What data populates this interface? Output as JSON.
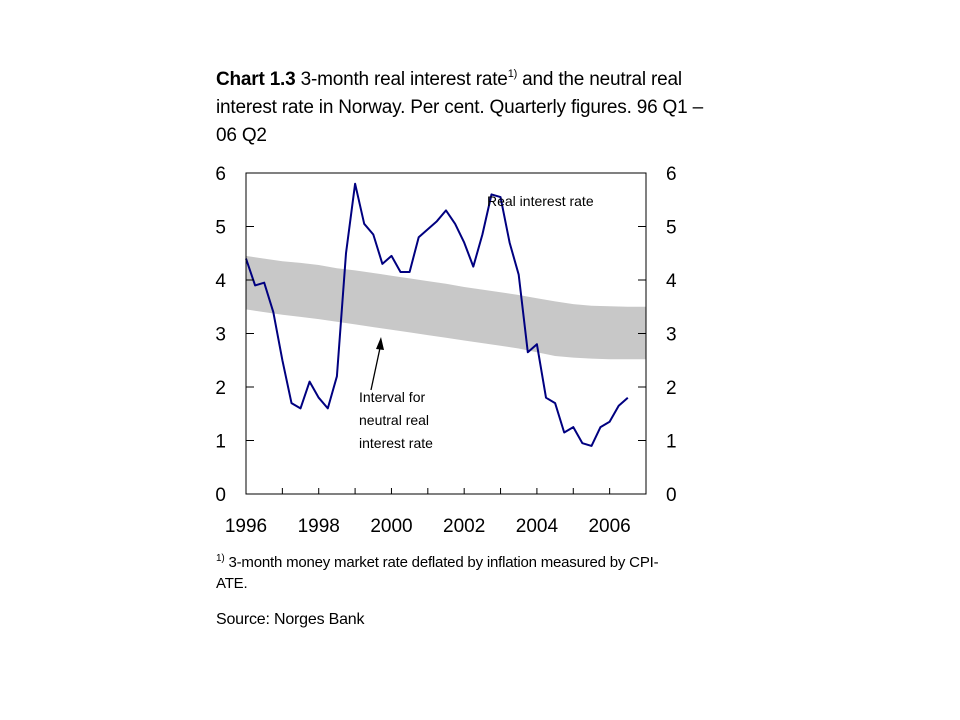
{
  "title": {
    "prefix": "Chart 1.3",
    "part1": "3-month real interest rate",
    "superscript": "1)",
    "part2": "and the neutral real interest rate in Norway. Per cent. Quarterly figures. 96 Q1 – 06 Q2"
  },
  "footnote": {
    "marker": "1)",
    "text": "3-month money market rate deflated by inflation measured by CPI-ATE."
  },
  "source": "Source: Norges Bank",
  "chart_data": {
    "type": "line",
    "ylim": [
      0,
      6
    ],
    "xlim": [
      1996,
      2007
    ],
    "y_ticks": [
      "0",
      "1",
      "2",
      "3",
      "4",
      "5",
      "6"
    ],
    "x_ticks": [
      "1996",
      "1998",
      "2000",
      "2002",
      "2004",
      "2006"
    ],
    "grid": false,
    "annotations": {
      "series_label": "Real interest rate",
      "band_label": "Interval for neutral real interest rate"
    },
    "colors": {
      "line": "#000080",
      "band": "#c8c8c8"
    },
    "band": {
      "x": [
        1996.0,
        1996.5,
        1997.0,
        1997.5,
        1998.0,
        1998.5,
        1999.0,
        1999.5,
        2000.0,
        2000.5,
        2001.0,
        2001.5,
        2002.0,
        2002.5,
        2003.0,
        2003.5,
        2004.0,
        2004.5,
        2005.0,
        2005.5,
        2006.0,
        2006.5,
        2007.0
      ],
      "upper": [
        4.45,
        4.4,
        4.35,
        4.32,
        4.28,
        4.22,
        4.18,
        4.13,
        4.08,
        4.03,
        3.98,
        3.93,
        3.87,
        3.82,
        3.77,
        3.72,
        3.66,
        3.6,
        3.55,
        3.52,
        3.51,
        3.5,
        3.5
      ],
      "lower": [
        3.45,
        3.4,
        3.35,
        3.31,
        3.27,
        3.22,
        3.17,
        3.12,
        3.07,
        3.02,
        2.97,
        2.92,
        2.87,
        2.82,
        2.77,
        2.72,
        2.65,
        2.58,
        2.55,
        2.53,
        2.52,
        2.52,
        2.52
      ]
    },
    "series": [
      {
        "name": "Real interest rate",
        "x": [
          1996.0,
          1996.25,
          1996.5,
          1996.75,
          1997.0,
          1997.25,
          1997.5,
          1997.75,
          1998.0,
          1998.25,
          1998.5,
          1998.75,
          1999.0,
          1999.25,
          1999.5,
          1999.75,
          2000.0,
          2000.25,
          2000.5,
          2000.75,
          2001.0,
          2001.25,
          2001.5,
          2001.75,
          2002.0,
          2002.25,
          2002.5,
          2002.75,
          2003.0,
          2003.25,
          2003.5,
          2003.75,
          2004.0,
          2004.25,
          2004.5,
          2004.75,
          2005.0,
          2005.25,
          2005.5,
          2005.75,
          2006.0,
          2006.25,
          2006.5
        ],
        "values": [
          4.4,
          3.9,
          3.95,
          3.4,
          2.5,
          1.7,
          1.6,
          2.1,
          1.8,
          1.6,
          2.2,
          4.5,
          5.8,
          5.05,
          4.85,
          4.3,
          4.45,
          4.15,
          4.15,
          4.8,
          4.95,
          5.1,
          5.3,
          5.05,
          4.7,
          4.25,
          4.85,
          5.6,
          5.55,
          4.7,
          4.1,
          2.65,
          2.8,
          1.8,
          1.7,
          1.15,
          1.25,
          0.95,
          0.9,
          1.25,
          1.35,
          1.65,
          1.8
        ]
      }
    ]
  }
}
